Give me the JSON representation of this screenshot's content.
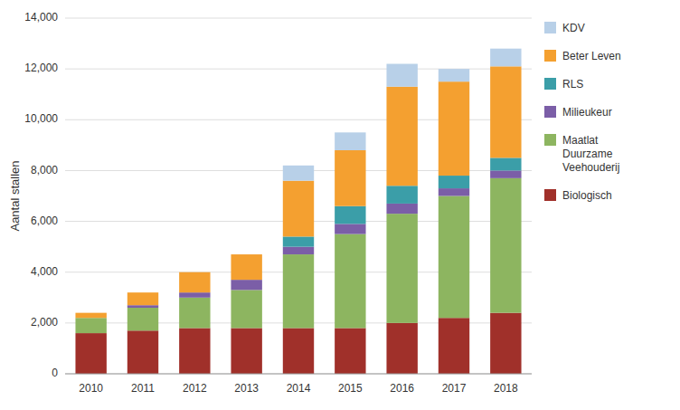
{
  "chart_data": {
    "type": "bar",
    "stacked": true,
    "categories": [
      "2010",
      "2011",
      "2012",
      "2013",
      "2014",
      "2015",
      "2016",
      "2017",
      "2018"
    ],
    "series": [
      {
        "name": "Biologisch",
        "color": "#A0302A",
        "values": [
          1600,
          1700,
          1800,
          1800,
          1800,
          1800,
          2000,
          2200,
          2400
        ]
      },
      {
        "name": "Maatlat\nDuurzame\nVeehouderij",
        "color": "#8DB560",
        "values": [
          600,
          900,
          1200,
          1500,
          2900,
          3700,
          4300,
          4800,
          5300
        ]
      },
      {
        "name": "Milieukeur",
        "color": "#7B5EA7",
        "values": [
          0,
          100,
          200,
          400,
          300,
          400,
          400,
          300,
          300
        ]
      },
      {
        "name": "RLS",
        "color": "#3B9EA8",
        "values": [
          0,
          0,
          0,
          0,
          400,
          700,
          700,
          500,
          500
        ]
      },
      {
        "name": "Beter Leven",
        "color": "#F4A030",
        "values": [
          200,
          500,
          800,
          1000,
          2200,
          2200,
          3900,
          3700,
          3600
        ]
      },
      {
        "name": "KDV",
        "color": "#B8D0E8",
        "values": [
          0,
          0,
          0,
          0,
          600,
          700,
          900,
          500,
          700
        ]
      }
    ],
    "ylabel": "Aantal stallen",
    "ylim": [
      0,
      14000
    ],
    "yticks": [
      0,
      {
        "value": 2000,
        "label": "2,000"
      },
      {
        "value": 4000,
        "label": "4,000"
      },
      {
        "value": 6000,
        "label": "6,000"
      },
      {
        "value": 8000,
        "label": "8,000"
      },
      {
        "value": 10000,
        "label": "10,000"
      },
      {
        "value": 12000,
        "label": "12,000"
      },
      {
        "value": 14000,
        "label": "14,000"
      }
    ],
    "grid": true,
    "legend": "right"
  }
}
